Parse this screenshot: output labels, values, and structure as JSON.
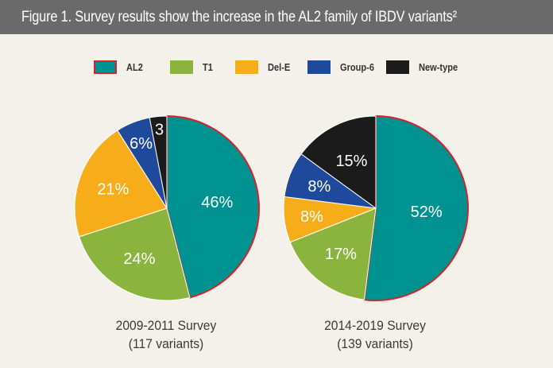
{
  "title": "Figure 1. Survey results show the increase in the AL2 family of IBDV variants²",
  "legend": [
    {
      "label": "AL2",
      "color": "#009191",
      "outline": "#d6232b"
    },
    {
      "label": "T1",
      "color": "#8bb43f"
    },
    {
      "label": "Del-E",
      "color": "#f7ac1a"
    },
    {
      "label": "Group-6",
      "color": "#1f4a9c"
    },
    {
      "label": "New-type",
      "color": "#1c1b1c"
    }
  ],
  "chart_data": [
    {
      "type": "pie",
      "caption_line1": "2009-2011 Survey",
      "caption_line2": "(117 variants)",
      "slices": [
        {
          "category": "AL2",
          "value": 46,
          "label": "46%"
        },
        {
          "category": "T1",
          "value": 24,
          "label": "24%"
        },
        {
          "category": "Del-E",
          "value": 21,
          "label": "21%"
        },
        {
          "category": "Group-6",
          "value": 6,
          "label": "6%"
        },
        {
          "category": "New-type",
          "value": 3,
          "label": "3"
        }
      ]
    },
    {
      "type": "pie",
      "caption_line1": "2014-2019 Survey",
      "caption_line2": "(139 variants)",
      "slices": [
        {
          "category": "AL2",
          "value": 52,
          "label": "52%"
        },
        {
          "category": "T1",
          "value": 17,
          "label": "17%"
        },
        {
          "category": "Del-E",
          "value": 8,
          "label": "8%"
        },
        {
          "category": "Group-6",
          "value": 8,
          "label": "8%"
        },
        {
          "category": "New-type",
          "value": 15,
          "label": "15%"
        }
      ]
    }
  ]
}
